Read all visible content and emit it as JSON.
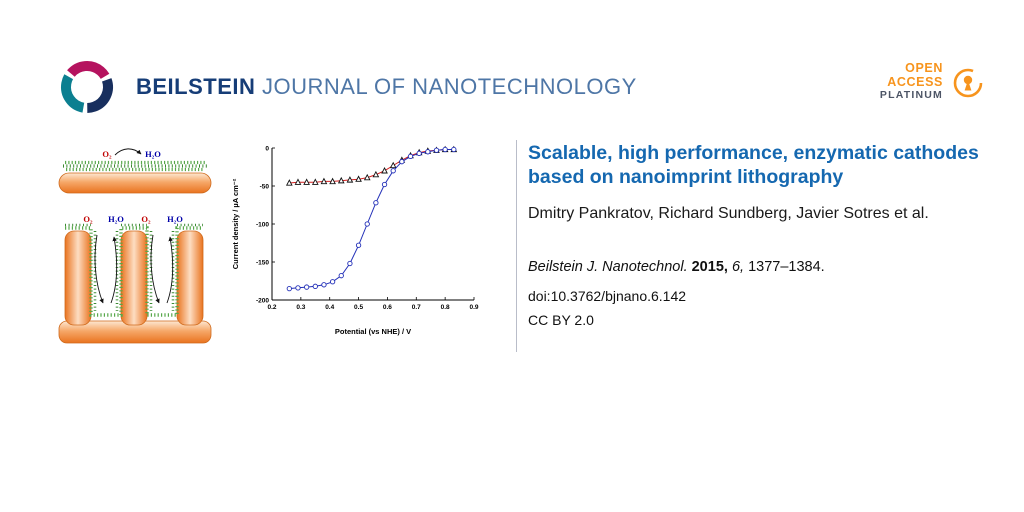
{
  "header": {
    "brand_bold": "BEILSTEIN",
    "brand_rest": "JOURNAL OF NANOTECHNOLOGY"
  },
  "open_access": {
    "line1": "OPEN",
    "line2": "ACCESS",
    "line3": "PLATINUM"
  },
  "colors": {
    "brand_navy": "#163d77",
    "brand_steel": "#4e76a6",
    "accent_orange": "#f7941d",
    "title_blue": "#1568b0",
    "electrode_orange": "#ef8a3e",
    "enzyme_green": "#4a9e3f",
    "curve_red": "#d42020",
    "curve_blue": "#2330b8"
  },
  "illustration": {
    "o2": "O₂",
    "h2o": "H₂O"
  },
  "chart_data": {
    "type": "line",
    "title": "",
    "xlabel": "Potential (vs NHE) / V",
    "ylabel": "Current density / µA cm⁻²",
    "xlim": [
      0.2,
      0.9
    ],
    "ylim": [
      -200,
      0
    ],
    "xticks": [
      0.2,
      0.3,
      0.4,
      0.5,
      0.6,
      0.7,
      0.8,
      0.9
    ],
    "yticks": [
      0,
      -50,
      -100,
      -150,
      -200
    ],
    "grid": false,
    "legend": "none",
    "x": [
      0.26,
      0.29,
      0.32,
      0.35,
      0.38,
      0.41,
      0.44,
      0.47,
      0.5,
      0.53,
      0.56,
      0.59,
      0.62,
      0.65,
      0.68,
      0.71,
      0.74,
      0.77,
      0.8,
      0.83
    ],
    "series": [
      {
        "name": "triangle-marked-curve",
        "color": "#d42020",
        "marker": "triangle",
        "marker_color": "#111111",
        "y": [
          -46,
          -45,
          -45,
          -45,
          -44,
          -44,
          -43,
          -42,
          -41,
          -39,
          -35,
          -30,
          -23,
          -16,
          -10,
          -6,
          -4,
          -3,
          -2,
          -2
        ]
      },
      {
        "name": "circle-marked-curve",
        "color": "#2330b8",
        "marker": "circle",
        "marker_color": "#2330b8",
        "y": [
          -185,
          -184,
          -183,
          -182,
          -180,
          -176,
          -168,
          -152,
          -128,
          -100,
          -72,
          -48,
          -30,
          -18,
          -11,
          -7,
          -5,
          -3,
          -2,
          -2
        ]
      }
    ]
  },
  "article": {
    "title": "Scalable, high performance, enzymatic cath­odes based on nanoimprint lithography",
    "authors": "Dmitry Pankratov, Richard Sundberg, Javier Sotres et al.",
    "citation": {
      "journal": "Beilstein J. Nanotechnol.",
      "year": " 2015, ",
      "volume": "6, ",
      "pages": "1377–1384."
    },
    "doi": "doi:10.3762/bjnano.6.142",
    "license": "CC BY 2.0"
  }
}
